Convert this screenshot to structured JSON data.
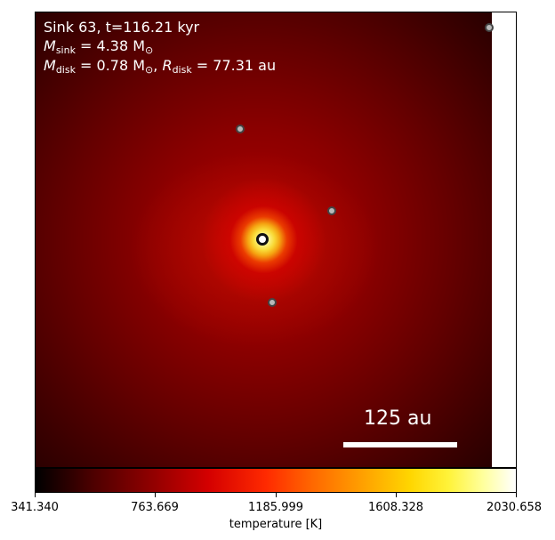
{
  "panel": {
    "title": "Sink 63, t=116.21 kyr",
    "mass_label": "M",
    "mass_sub": "sink",
    "mass_value": " = 4.38 M",
    "sun_sub": "⊙",
    "disk_mass_label": "M",
    "disk_mass_sub": "disk",
    "disk_mass_value": " = 0.78 M",
    "disk_sun_sub": "⊙",
    "disk_comma": ", ",
    "disk_radius_label": "R",
    "disk_radius_sub": "disk",
    "disk_radius_value": " = 77.31 au"
  },
  "scalebar": {
    "label": "125 au"
  },
  "colorbar": {
    "title": "temperature [K]",
    "ticks": [
      "341.340",
      "763.669",
      "1185.999",
      "1608.328",
      "2030.658"
    ],
    "colors": [
      "#000000",
      "#8f0000",
      "#ff2a00",
      "#ffa000",
      "#ffff9a",
      "#ffffff"
    ]
  }
}
